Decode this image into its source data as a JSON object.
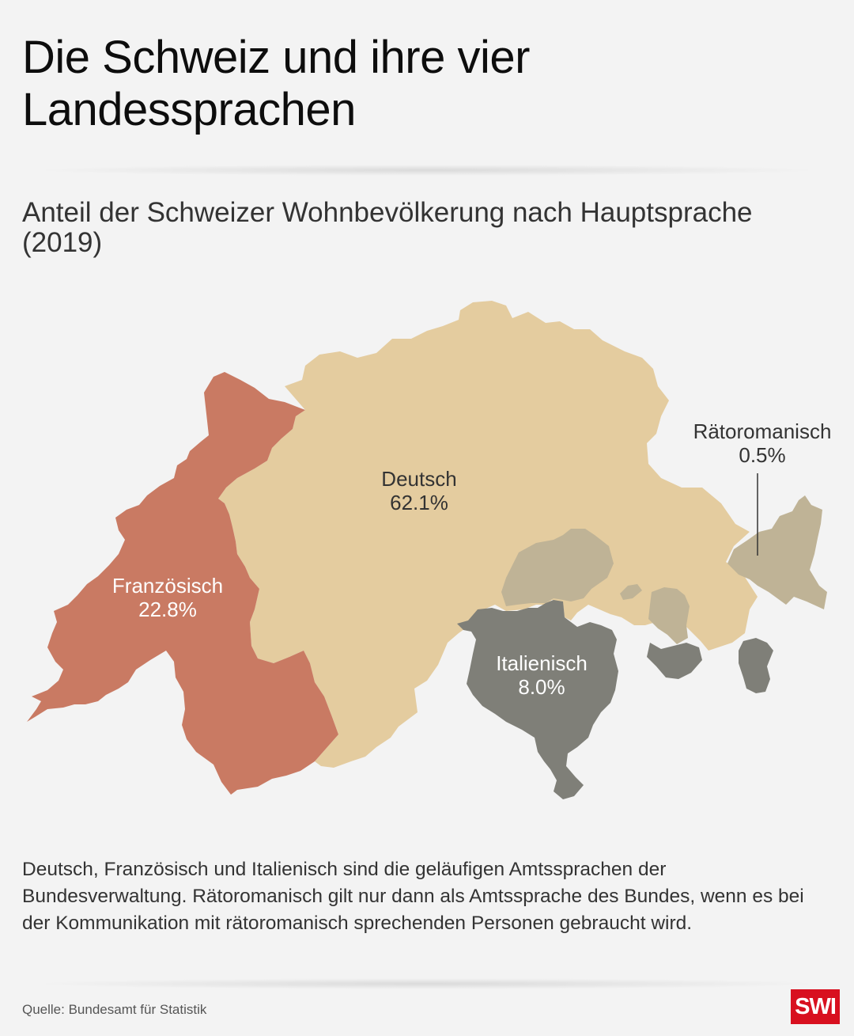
{
  "title": "Die Schweiz und ihre vier Landessprachen",
  "subtitle": "Anteil der Schweizer Wohnbevölkerung nach Hauptsprache (2019)",
  "colors": {
    "background": "#f3f3f3",
    "deutsch": "#e4cc9f",
    "franzoesisch": "#c97a63",
    "italienisch": "#7f7f78",
    "raetoromanisch": "#bfb396"
  },
  "regions": {
    "deutsch": {
      "name": "Deutsch",
      "share": "62.1%"
    },
    "franzoesisch": {
      "name": "Französisch",
      "share": "22.8%"
    },
    "italienisch": {
      "name": "Italienisch",
      "share": "8.0%"
    },
    "raetoromanisch": {
      "name": "Rätoromanisch",
      "share": "0.5%"
    }
  },
  "note": "Deutsch, Französisch und Italienisch sind die geläufigen Amtssprachen der Bundesverwaltung. Rätoromanisch gilt nur dann als Amtssprache des Bundes, wenn es bei der Kommunikation mit rätoromanisch sprechenden Personen gebraucht wird.",
  "source": "Quelle: Bundesamt für Statistik",
  "logo": "SWI"
}
